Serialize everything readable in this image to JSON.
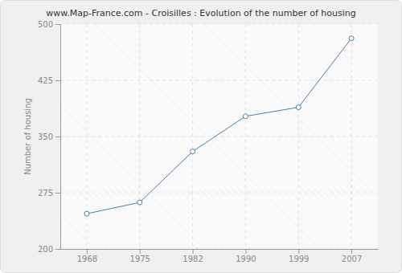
{
  "chart_data": {
    "type": "line",
    "title": "www.Map-France.com - Croisilles : Evolution of the number of housing",
    "y_label": "Number of housing",
    "categories": [
      "1968",
      "1975",
      "1982",
      "1990",
      "1999",
      "2007"
    ],
    "values": [
      247,
      262,
      330,
      377,
      389,
      481
    ],
    "color": "#4f7ca8",
    "marker": "circle",
    "ylim": [
      200,
      500
    ],
    "yticks": [
      200,
      275,
      350,
      425,
      500
    ],
    "grid": true
  }
}
